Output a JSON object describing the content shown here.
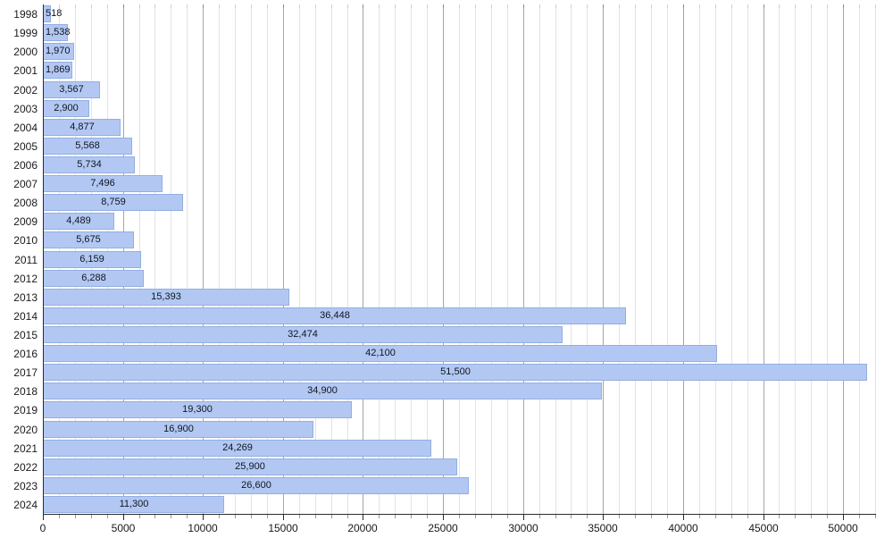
{
  "chart_data": {
    "type": "bar",
    "orientation": "horizontal",
    "title": "",
    "xlabel": "",
    "ylabel": "",
    "categories": [
      "1998",
      "1999",
      "2000",
      "2001",
      "2002",
      "2003",
      "2004",
      "2005",
      "2006",
      "2007",
      "2008",
      "2009",
      "2010",
      "2011",
      "2012",
      "2013",
      "2014",
      "2015",
      "2016",
      "2017",
      "2018",
      "2019",
      "2020",
      "2021",
      "2022",
      "2023",
      "2024"
    ],
    "values": [
      518,
      1538,
      1970,
      1869,
      3567,
      2900,
      4877,
      5568,
      5734,
      7496,
      8759,
      4489,
      5675,
      6159,
      6288,
      15393,
      36448,
      32474,
      42100,
      51500,
      34900,
      19300,
      16900,
      24269,
      25900,
      26600,
      11300
    ],
    "value_labels": [
      "518",
      "1,538",
      "1,970",
      "1,869",
      "3,567",
      "2,900",
      "4,877",
      "5,568",
      "5,734",
      "7,496",
      "8,759",
      "4,489",
      "5,675",
      "6,159",
      "6,288",
      "15,393",
      "36,448",
      "32,474",
      "42,100",
      "51,500",
      "34,900",
      "19,300",
      "16,900",
      "24,269",
      "25,900",
      "26,600",
      "11,300"
    ],
    "xlim": [
      0,
      52000
    ],
    "x_major_step": 5000,
    "x_minor_step": 1000,
    "x_tick_labels": [
      "0",
      "5000",
      "10000",
      "15000",
      "20000",
      "25000",
      "30000",
      "35000",
      "40000",
      "45000",
      "50000"
    ],
    "grid": "vertical, minor every 1000, major every 5000",
    "legend": "none",
    "colors": {
      "bar_fill": "#b2c8f3",
      "bar_border": "#93aee1",
      "grid_minor": "#e3e3e3",
      "grid_major": "#a6a6a6",
      "axis": "#2b2b2b",
      "text": "#1a1a1a",
      "value_text": "#10141f",
      "background": "#ffffff"
    }
  }
}
